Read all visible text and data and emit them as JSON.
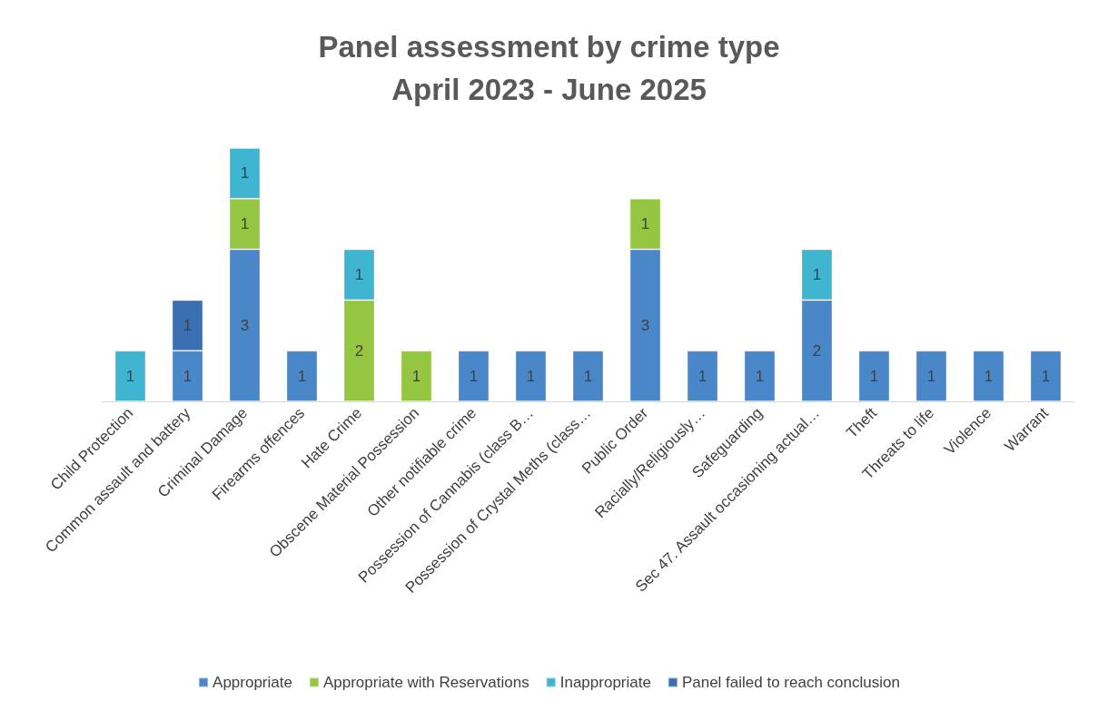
{
  "chart_data": {
    "type": "bar",
    "title": "Panel assessment by crime type",
    "subtitle": "April 2023 - June 2025",
    "categories": [
      "Child Protection",
      "Common assault and battery",
      "Criminal Damage",
      "Firearms offences",
      "Hate Crime",
      "Obscene Material Possession",
      "Other notifiable crime",
      "Possession of Cannabis (class B…",
      "Possession of Crystal Meths (class…",
      "Public Order",
      "Racially/Religiously…",
      "Safeguarding",
      "Sec 47. Assault occasioning actual…",
      "Theft",
      "Threats to life",
      "Violence",
      "Warrant"
    ],
    "series": [
      {
        "name": "Appropriate",
        "color": "#4a87c9",
        "values": [
          null,
          1,
          3,
          1,
          null,
          null,
          1,
          1,
          1,
          3,
          1,
          1,
          2,
          1,
          1,
          1,
          1
        ]
      },
      {
        "name": "Appropriate with Reservations",
        "color": "#95c641",
        "values": [
          null,
          null,
          1,
          null,
          2,
          1,
          null,
          null,
          null,
          1,
          null,
          null,
          null,
          null,
          null,
          null,
          null
        ]
      },
      {
        "name": "Inappropriate",
        "color": "#3fb5d1",
        "values": [
          1,
          null,
          1,
          null,
          1,
          null,
          null,
          null,
          null,
          null,
          null,
          null,
          1,
          null,
          null,
          null,
          null
        ]
      },
      {
        "name": "Panel failed to reach conclusion",
        "color": "#3a70b2",
        "values": [
          null,
          1,
          null,
          null,
          null,
          null,
          null,
          null,
          null,
          null,
          null,
          null,
          null,
          null,
          null,
          null,
          null
        ]
      }
    ],
    "stacked": true,
    "data_labels": true,
    "legend": "bottom"
  }
}
